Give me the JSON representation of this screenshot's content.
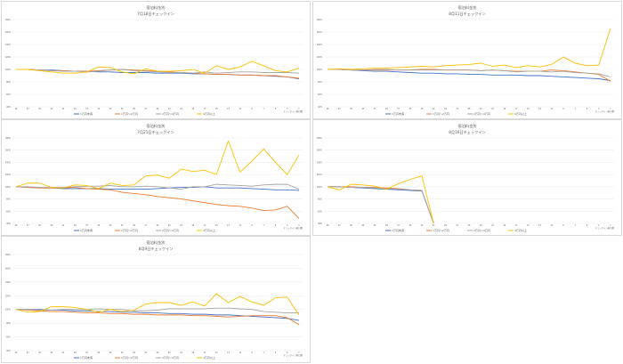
{
  "chart_data": [
    {
      "type": "line",
      "title": "宿泊料金別",
      "subtitle": "7月18日チェックイン",
      "xlabel": "チェックイン前日数",
      "ylim": [
        40,
        180
      ],
      "yticks": [
        "40%",
        "60%",
        "80%",
        "100%",
        "120%",
        "140%",
        "160%",
        "180%"
      ],
      "x": [
        "49",
        "47",
        "45",
        "43",
        "41",
        "39",
        "37",
        "35",
        "33",
        "31",
        "29",
        "27",
        "25",
        "23",
        "21",
        "19",
        "17",
        "15",
        "13",
        "11",
        "9",
        "7",
        "5",
        "3",
        "1"
      ],
      "series": [
        {
          "name": "1万円未満",
          "color": "#4472c4",
          "values": [
            100,
            100,
            99,
            99,
            98,
            97,
            97,
            96,
            96,
            95,
            95,
            95,
            94,
            94,
            94,
            93,
            93,
            92,
            92,
            91,
            91,
            90,
            89,
            88,
            85
          ]
        },
        {
          "name": "1万円～2万円",
          "color": "#ed7d31",
          "values": [
            100,
            100,
            99,
            98,
            98,
            97,
            97,
            98,
            99,
            100,
            99,
            98,
            97,
            96,
            95,
            94,
            93,
            92,
            92,
            91,
            91,
            90,
            90,
            88,
            86
          ]
        },
        {
          "name": "2万円～4万円",
          "color": "#a5a5a5",
          "values": [
            100,
            100,
            99,
            98,
            97,
            97,
            96,
            97,
            99,
            100,
            98,
            97,
            96,
            95,
            95,
            94,
            96,
            94,
            95,
            96,
            96,
            95,
            95,
            95,
            94
          ]
        },
        {
          "name": "4万円以上",
          "color": "#ffc000",
          "values": [
            100,
            100,
            98,
            96,
            94,
            94,
            96,
            104,
            103,
            96,
            93,
            101,
            97,
            97,
            98,
            100,
            94,
            106,
            100,
            104,
            113,
            106,
            98,
            96,
            102
          ]
        }
      ]
    },
    {
      "type": "line",
      "title": "宿泊料金別",
      "subtitle": "8月11日チェックイン",
      "xlabel": "チェックイン前日数",
      "ylim": [
        40,
        180
      ],
      "yticks": [
        "40%",
        "60%",
        "80%",
        "100%",
        "120%",
        "140%",
        "160%",
        "180%"
      ],
      "x": [
        "49",
        "47",
        "45",
        "43",
        "41",
        "39",
        "37",
        "35",
        "33",
        "31",
        "29",
        "27",
        "25",
        "23",
        "21",
        "19",
        "17",
        "15",
        "13",
        "11",
        "9",
        "7",
        "5",
        "3",
        "1"
      ],
      "series": [
        {
          "name": "1万円未満",
          "color": "#4472c4",
          "values": [
            100,
            100,
            99,
            98,
            97,
            97,
            96,
            95,
            94,
            94,
            93,
            93,
            92,
            92,
            91,
            91,
            91,
            90,
            90,
            89,
            88,
            87,
            86,
            85,
            82
          ]
        },
        {
          "name": "1万円～2万円",
          "color": "#ed7d31",
          "values": [
            100,
            100,
            99,
            99,
            99,
            99,
            99,
            99,
            100,
            100,
            99,
            99,
            99,
            98,
            99,
            98,
            97,
            97,
            97,
            99,
            98,
            96,
            94,
            92,
            81
          ]
        },
        {
          "name": "2万円～4万円",
          "color": "#a5a5a5",
          "values": [
            100,
            100,
            99,
            99,
            100,
            100,
            99,
            99,
            99,
            99,
            99,
            99,
            99,
            98,
            99,
            98,
            96,
            97,
            97,
            96,
            97,
            95,
            94,
            93,
            88
          ]
        },
        {
          "name": "4万円以上",
          "color": "#ffc000",
          "values": [
            100,
            101,
            100,
            101,
            102,
            102,
            103,
            104,
            105,
            104,
            106,
            107,
            108,
            110,
            105,
            107,
            103,
            106,
            104,
            108,
            120,
            110,
            106,
            107,
            166
          ]
        }
      ]
    },
    {
      "type": "line",
      "title": "宿泊料金別",
      "subtitle": "7月21日チェックイン",
      "xlabel": "チェックイン前日数",
      "ylim": [
        40,
        180
      ],
      "yticks": [
        "40%",
        "60%",
        "80%",
        "100%",
        "120%",
        "140%",
        "160%",
        "180%"
      ],
      "x": [
        "49",
        "47",
        "45",
        "43",
        "41",
        "39",
        "37",
        "35",
        "33",
        "31",
        "29",
        "27",
        "25",
        "23",
        "21",
        "19",
        "17",
        "15",
        "13",
        "11",
        "9",
        "7",
        "5",
        "3",
        "1"
      ],
      "series": [
        {
          "name": "1万円未満",
          "color": "#4472c4",
          "values": [
            100,
            99,
            98,
            98,
            97,
            97,
            97,
            97,
            96,
            96,
            96,
            96,
            97,
            98,
            99,
            99,
            100,
            98,
            98,
            98,
            97,
            96,
            95,
            95,
            94
          ]
        },
        {
          "name": "1万円～2万円",
          "color": "#ed7d31",
          "values": [
            100,
            99,
            98,
            98,
            98,
            99,
            97,
            96,
            95,
            91,
            89,
            87,
            84,
            82,
            80,
            77,
            74,
            71,
            69,
            68,
            65,
            61,
            62,
            68,
            48
          ]
        },
        {
          "name": "2万円～4万円",
          "color": "#a5a5a5",
          "values": [
            100,
            100,
            99,
            99,
            99,
            100,
            101,
            101,
            102,
            100,
            100,
            101,
            100,
            98,
            96,
            100,
            100,
            104,
            103,
            102,
            101,
            103,
            104,
            104,
            96
          ]
        },
        {
          "name": "4万円以上",
          "color": "#ffc000",
          "values": [
            100,
            106,
            106,
            99,
            98,
            103,
            102,
            97,
            106,
            102,
            103,
            118,
            119,
            114,
            129,
            125,
            127,
            120,
            175,
            124,
            142,
            162,
            140,
            120,
            152
          ]
        }
      ]
    },
    {
      "type": "line",
      "title": "宿泊料金別",
      "subtitle": "8月16日チェックイン",
      "xlabel": "チェックイン前日数",
      "ylim": [
        40,
        180
      ],
      "yticks": [
        "40%",
        "60%",
        "80%",
        "100%",
        "120%",
        "140%",
        "160%",
        "180%"
      ],
      "x": [
        "49",
        "47",
        "45",
        "43",
        "41",
        "39",
        "37",
        "35",
        "33",
        "31",
        "29",
        "27",
        "25",
        "23",
        "21",
        "19",
        "17",
        "15",
        "13",
        "11",
        "9",
        "7",
        "5",
        "3",
        "1"
      ],
      "series": [
        {
          "name": "1万円未満",
          "color": "#4472c4",
          "values": [
            100,
            100,
            99,
            98,
            97,
            96,
            95,
            94,
            93,
            40,
            null,
            null,
            null,
            null,
            null,
            null,
            null,
            null,
            null,
            null,
            null,
            null,
            null,
            null,
            null
          ]
        },
        {
          "name": "1万円～2万円",
          "color": "#ed7d31",
          "values": [
            100,
            100,
            100,
            99,
            99,
            98,
            97,
            95,
            94,
            40,
            null,
            null,
            null,
            null,
            null,
            null,
            null,
            null,
            null,
            null,
            null,
            null,
            null,
            null,
            null
          ]
        },
        {
          "name": "2万円～4万円",
          "color": "#a5a5a5",
          "values": [
            100,
            100,
            99,
            99,
            98,
            97,
            96,
            95,
            94,
            40,
            null,
            null,
            null,
            null,
            null,
            null,
            null,
            null,
            null,
            null,
            null,
            null,
            null,
            null,
            null
          ]
        },
        {
          "name": "4万円以上",
          "color": "#ffc000",
          "values": [
            100,
            95,
            104,
            103,
            101,
            96,
            105,
            112,
            118,
            40,
            null,
            null,
            null,
            null,
            null,
            null,
            null,
            null,
            null,
            null,
            null,
            null,
            null,
            null,
            null
          ]
        }
      ]
    },
    {
      "type": "line",
      "title": "宿泊料金別",
      "subtitle": "8月9日チェックイン",
      "xlabel": "チェックイン前日数",
      "ylim": [
        40,
        180
      ],
      "yticks": [
        "40%",
        "60%",
        "80%",
        "100%",
        "120%",
        "140%",
        "160%",
        "180%"
      ],
      "x": [
        "49",
        "47",
        "45",
        "43",
        "41",
        "39",
        "37",
        "35",
        "33",
        "31",
        "29",
        "27",
        "25",
        "23",
        "21",
        "19",
        "17",
        "15",
        "13",
        "11",
        "9",
        "7",
        "5",
        "3",
        "1"
      ],
      "series": [
        {
          "name": "1万円未満",
          "color": "#4472c4",
          "values": [
            100,
            100,
            100,
            99,
            99,
            98,
            98,
            97,
            97,
            96,
            96,
            95,
            95,
            94,
            94,
            93,
            93,
            92,
            92,
            91,
            90,
            89,
            88,
            87,
            84
          ]
        },
        {
          "name": "1万円～2万円",
          "color": "#ed7d31",
          "values": [
            100,
            99,
            98,
            97,
            97,
            96,
            95,
            95,
            94,
            94,
            93,
            93,
            92,
            92,
            92,
            91,
            91,
            90,
            89,
            90,
            91,
            91,
            91,
            88,
            78
          ]
        },
        {
          "name": "2万円～4万円",
          "color": "#a5a5a5",
          "values": [
            100,
            100,
            99,
            99,
            100,
            100,
            100,
            101,
            100,
            100,
            98,
            98,
            99,
            101,
            101,
            101,
            101,
            102,
            102,
            101,
            100,
            97,
            96,
            95,
            95
          ]
        },
        {
          "name": "4万円以上",
          "color": "#ffc000",
          "values": [
            100,
            96,
            97,
            104,
            104,
            103,
            100,
            96,
            100,
            97,
            99,
            108,
            110,
            110,
            106,
            111,
            105,
            123,
            110,
            119,
            111,
            106,
            117,
            118,
            92
          ]
        }
      ]
    }
  ]
}
